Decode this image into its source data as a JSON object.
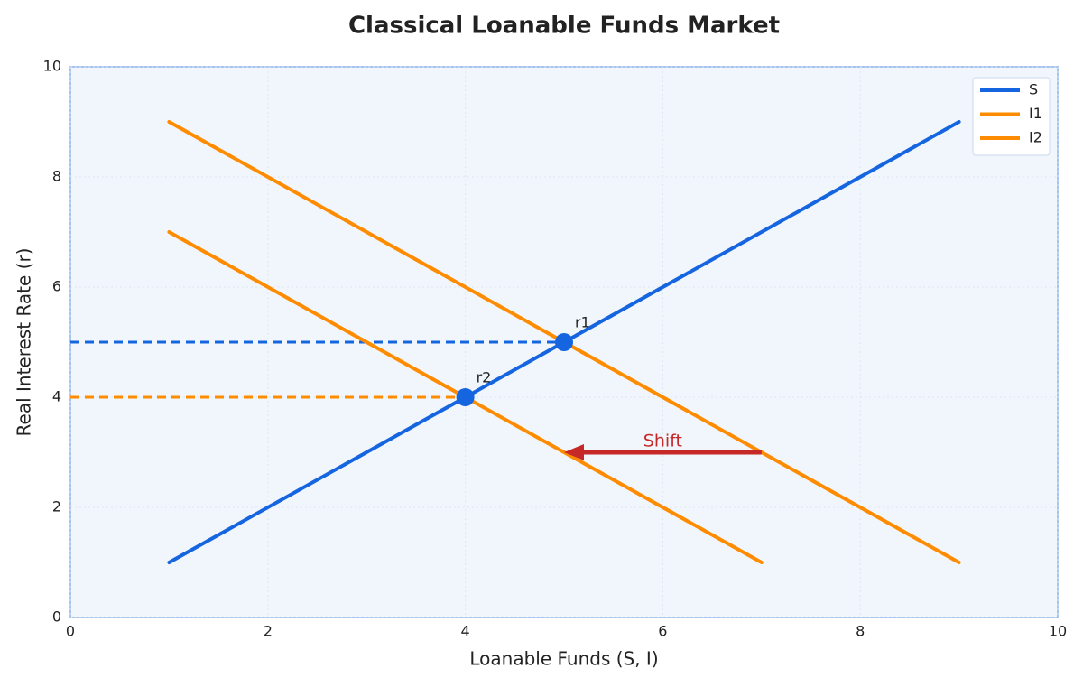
{
  "chart_data": {
    "type": "line",
    "title": "Classical Loanable Funds Market",
    "x_label": "Loanable Funds (S, I)",
    "y_label": "Real Interest Rate (r)",
    "xlim": [
      0,
      10
    ],
    "ylim": [
      0,
      10
    ],
    "xticks": [
      0,
      2,
      4,
      6,
      8,
      10
    ],
    "yticks": [
      0,
      2,
      4,
      6,
      8,
      10
    ],
    "grid": true,
    "legend": "upper right",
    "series": [
      {
        "name": "S",
        "color": "#1565e0",
        "x": [
          1,
          9
        ],
        "values": [
          1,
          9
        ]
      },
      {
        "name": "I1",
        "color": "#ff8c00",
        "x": [
          1,
          9
        ],
        "values": [
          9,
          1
        ]
      },
      {
        "name": "I2",
        "color": "#ff8c00",
        "x": [
          1,
          7
        ],
        "values": [
          7,
          1
        ]
      }
    ],
    "guides": [
      {
        "x": [
          0,
          5
        ],
        "y": 5,
        "color": "#1565e0"
      },
      {
        "x": [
          0,
          4
        ],
        "y": 4,
        "color": "#ff8c00"
      }
    ],
    "points": [
      {
        "label": "r1",
        "x": 5,
        "y": 5,
        "color": "#1565e0"
      },
      {
        "label": "r2",
        "x": 4,
        "y": 4,
        "color": "#1565e0"
      }
    ],
    "arrow": {
      "label": "Shift",
      "from": [
        7,
        3
      ],
      "to": [
        5,
        3
      ],
      "color": "#c62828"
    }
  }
}
